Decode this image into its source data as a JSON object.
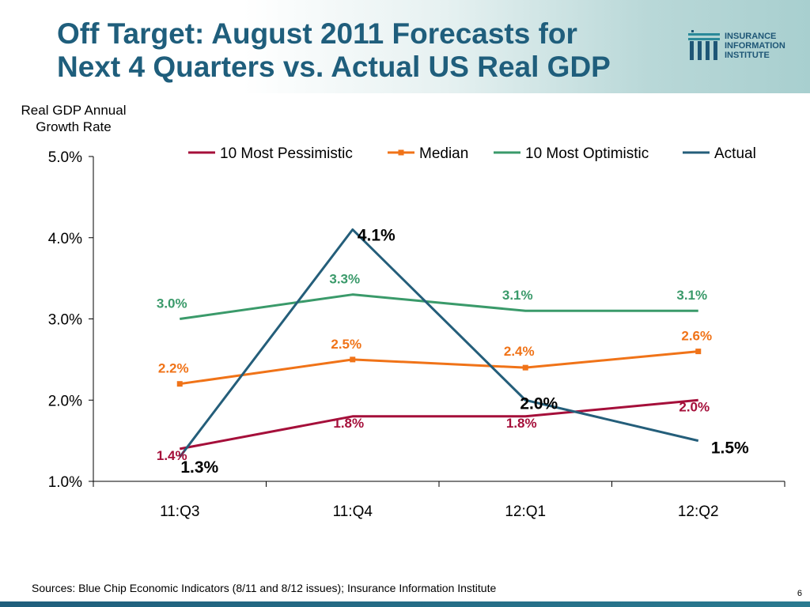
{
  "slide": {
    "title_line1": "Off Target: August 2011 Forecasts for",
    "title_line2": "Next 4 Quarters vs. Actual US Real GDP",
    "logo": {
      "line1": "INSURANCE",
      "line2": "INFORMATION",
      "line3": "INSTITUTE"
    },
    "ylabel_line1": "Real GDP Annual",
    "ylabel_line2": "Growth Rate",
    "sources": "Sources: Blue Chip Economic Indicators (8/11 and 8/12 issues); Insurance Information Institute",
    "page_number": "6"
  },
  "chart_data": {
    "type": "line",
    "categories": [
      "11:Q3",
      "11:Q4",
      "12:Q1",
      "12:Q2"
    ],
    "ylim": [
      1.0,
      5.0
    ],
    "yticks": [
      1.0,
      2.0,
      3.0,
      4.0,
      5.0
    ],
    "ytick_labels": [
      "1.0%",
      "2.0%",
      "3.0%",
      "4.0%",
      "5.0%"
    ],
    "legend_position": "top",
    "series": [
      {
        "name": "10 Most Pessimistic",
        "color": "#a50f3a",
        "marker": "none",
        "values": [
          1.4,
          1.8,
          1.8,
          2.0
        ],
        "labels": [
          "1.4%",
          "1.8%",
          "1.8%",
          "2.0%"
        ]
      },
      {
        "name": "Median",
        "color": "#f07318",
        "marker": "square",
        "values": [
          2.2,
          2.5,
          2.4,
          2.6
        ],
        "labels": [
          "2.2%",
          "2.5%",
          "2.4%",
          "2.6%"
        ]
      },
      {
        "name": "10 Most Optimistic",
        "color": "#3a9a6a",
        "marker": "none",
        "values": [
          3.0,
          3.3,
          3.1,
          3.1
        ],
        "labels": [
          "3.0%",
          "3.3%",
          "3.1%",
          "3.1%"
        ]
      },
      {
        "name": "Actual",
        "color": "#245e7a",
        "marker": "none",
        "values": [
          1.3,
          4.1,
          2.0,
          1.5
        ],
        "labels": [
          "1.3%",
          "4.1%",
          "2.0%",
          "1.5%"
        ]
      }
    ]
  }
}
